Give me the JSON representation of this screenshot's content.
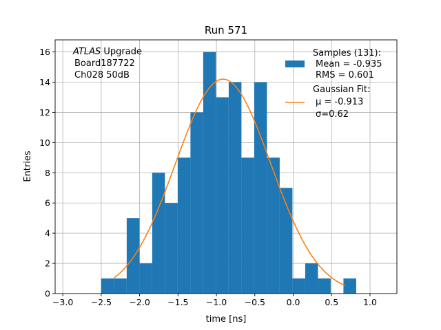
{
  "chart_data": {
    "type": "histogram",
    "title": "Run 571",
    "xlabel": "time [ns]",
    "ylabel": "Entries",
    "xlim": [
      -3.1,
      1.35
    ],
    "ylim": [
      0,
      16.8
    ],
    "grid": true,
    "xticks": [
      -3.0,
      -2.5,
      -2.0,
      -1.5,
      -1.0,
      -0.5,
      0.0,
      0.5,
      1.0
    ],
    "xtick_labels": [
      "−3.0",
      "−2.5",
      "−2.0",
      "−1.5",
      "−1.0",
      "−0.5",
      "0.0",
      "0.5",
      "1.0"
    ],
    "yticks": [
      0,
      2,
      4,
      6,
      8,
      10,
      12,
      14,
      16
    ],
    "ytick_labels": [
      "0",
      "2",
      "4",
      "6",
      "8",
      "10",
      "12",
      "14",
      "16"
    ],
    "bins": {
      "start": -2.5,
      "width": 0.166,
      "counts": [
        1,
        1,
        5,
        2,
        8,
        6,
        9,
        12,
        16,
        13,
        14,
        9,
        14,
        9,
        7,
        1,
        2,
        1,
        0,
        1
      ]
    },
    "fit": {
      "type": "gaussian",
      "mu": -0.913,
      "sigma": 0.62,
      "amplitude": 14.2,
      "x_range": [
        -2.33,
        0.67
      ]
    },
    "colors": {
      "bars": "#1f77b4",
      "fit": "#ff7f0e"
    },
    "annotation": {
      "lines": [
        "ATLAS Upgrade",
        "Board187722",
        "Ch028 50dB"
      ],
      "italic_word": "ATLAS"
    },
    "legend": {
      "placement": "top-right",
      "samples_lines": [
        "Samples (131):",
        "Mean = -0.935",
        "RMS = 0.601"
      ],
      "fit_lines": [
        "Gaussian Fit:",
        "μ = -0.913",
        "σ=0.62"
      ]
    }
  }
}
